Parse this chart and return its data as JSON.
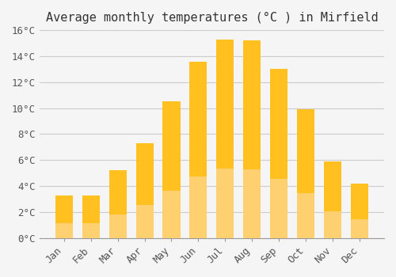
{
  "title": "Average monthly temperatures (°C ) in Mirfield",
  "months": [
    "Jan",
    "Feb",
    "Mar",
    "Apr",
    "May",
    "Jun",
    "Jul",
    "Aug",
    "Sep",
    "Oct",
    "Nov",
    "Dec"
  ],
  "values": [
    3.3,
    3.3,
    5.2,
    7.3,
    10.5,
    13.6,
    15.3,
    15.2,
    13.0,
    9.9,
    5.9,
    4.2
  ],
  "bar_color_top": "#FFC020",
  "bar_color_bottom": "#FFD070",
  "background_color": "#F5F5F5",
  "grid_color": "#CCCCCC",
  "ylim": [
    0,
    16
  ],
  "yticks": [
    0,
    2,
    4,
    6,
    8,
    10,
    12,
    14,
    16
  ],
  "ytick_labels": [
    "0°C",
    "2°C",
    "4°C",
    "6°C",
    "8°C",
    "10°C",
    "12°C",
    "14°C",
    "16°C"
  ],
  "title_fontsize": 11,
  "tick_fontsize": 9,
  "title_font_family": "monospace"
}
